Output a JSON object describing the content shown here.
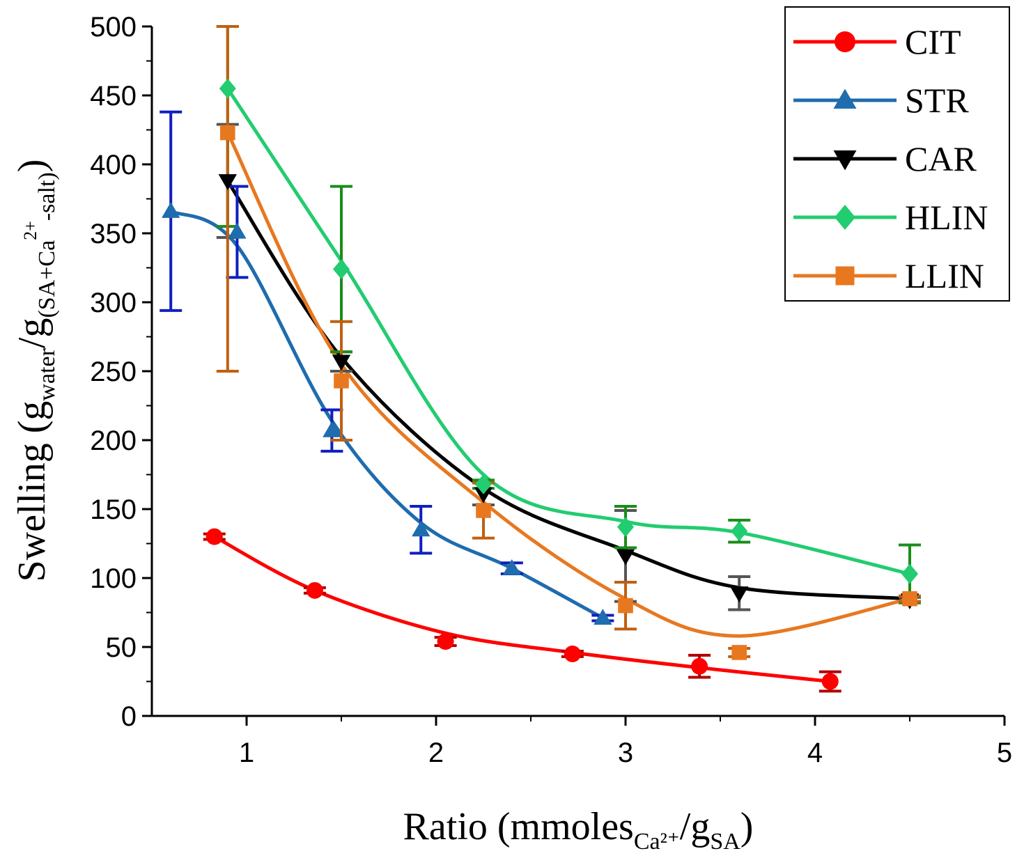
{
  "chart_data": {
    "type": "line",
    "title": "",
    "xlabel": {
      "main": "Ratio (mmoles",
      "sub1": "Ca²⁺",
      "mid": "/g",
      "sub2": "SA",
      "end": ")"
    },
    "ylabel": {
      "main": "Swelling (g",
      "sub1": "water",
      "mid": "/g",
      "sub2": "(SA+Ca",
      "sup": "2+",
      "sub3": "-salt)",
      "end": ")"
    },
    "xlim": [
      0.5,
      5
    ],
    "ylim": [
      0,
      500
    ],
    "xticks": [
      1,
      2,
      3,
      4,
      5
    ],
    "yticks": [
      0,
      50,
      100,
      150,
      200,
      250,
      300,
      350,
      400,
      450,
      500
    ],
    "legend_position": "top-right",
    "series": [
      {
        "name": "CIT",
        "color": "#ff0000",
        "marker": "circle",
        "errorbar_color": "#b00000",
        "points": [
          {
            "x": 0.83,
            "y": 130,
            "err": 2
          },
          {
            "x": 1.36,
            "y": 91,
            "err": 2
          },
          {
            "x": 2.05,
            "y": 54,
            "err": 3
          },
          {
            "x": 2.72,
            "y": 45,
            "err": 2
          },
          {
            "x": 3.39,
            "y": 36,
            "err": 8
          },
          {
            "x": 4.08,
            "y": 25,
            "err": 7
          }
        ],
        "curve": [
          [
            0.83,
            130
          ],
          [
            1.36,
            91
          ],
          [
            2.05,
            60
          ],
          [
            2.72,
            46
          ],
          [
            3.39,
            35
          ],
          [
            4.08,
            25
          ]
        ]
      },
      {
        "name": "STR",
        "color": "#1f6cae",
        "marker": "triangle-up",
        "errorbar_color": "#0f1fc0",
        "points": [
          {
            "x": 0.6,
            "y": 366,
            "err": 72
          },
          {
            "x": 0.95,
            "y": 351,
            "err": 33
          },
          {
            "x": 1.45,
            "y": 207,
            "err": 15
          },
          {
            "x": 1.92,
            "y": 135,
            "err": 17
          },
          {
            "x": 2.4,
            "y": 107,
            "err": 4
          },
          {
            "x": 2.88,
            "y": 71,
            "err": 2
          }
        ],
        "curve": [
          [
            0.6,
            366
          ],
          [
            0.95,
            341
          ],
          [
            1.45,
            214
          ],
          [
            1.92,
            140
          ],
          [
            2.4,
            107
          ],
          [
            2.88,
            71
          ]
        ]
      },
      {
        "name": "CAR",
        "color": "#000000",
        "marker": "triangle-down",
        "errorbar_color": "#555555",
        "points": [
          {
            "x": 0.9,
            "y": 388,
            "err": 41
          },
          {
            "x": 1.5,
            "y": 257,
            "err": 7
          },
          {
            "x": 2.25,
            "y": 161,
            "err": 8
          },
          {
            "x": 3.0,
            "y": 116,
            "err": 33
          },
          {
            "x": 3.6,
            "y": 89,
            "err": 12
          },
          {
            "x": 4.5,
            "y": 84,
            "err": 2
          }
        ],
        "curve": [
          [
            0.9,
            388
          ],
          [
            1.5,
            260
          ],
          [
            2.25,
            165
          ],
          [
            3.0,
            120
          ],
          [
            3.6,
            93
          ],
          [
            4.5,
            85
          ]
        ]
      },
      {
        "name": "HLIN",
        "color": "#22cc70",
        "marker": "diamond",
        "errorbar_color": "#1a8c1a",
        "points": [
          {
            "x": 0.9,
            "y": 455,
            "err": 100
          },
          {
            "x": 1.5,
            "y": 324,
            "err": 60
          },
          {
            "x": 2.25,
            "y": 168,
            "err": 3
          },
          {
            "x": 3.0,
            "y": 137,
            "err": 15
          },
          {
            "x": 3.6,
            "y": 134,
            "err": 8
          },
          {
            "x": 4.5,
            "y": 103,
            "err": 21
          }
        ],
        "curve": [
          [
            0.9,
            455
          ],
          [
            1.5,
            330
          ],
          [
            2.25,
            175
          ],
          [
            3.0,
            141
          ],
          [
            3.6,
            133
          ],
          [
            4.5,
            103
          ]
        ]
      },
      {
        "name": "LLIN",
        "color": "#e87820",
        "marker": "square",
        "errorbar_color": "#c06010",
        "points": [
          {
            "x": 0.9,
            "y": 423,
            "err": 173
          },
          {
            "x": 1.5,
            "y": 243,
            "err": 43
          },
          {
            "x": 2.25,
            "y": 149,
            "err": 20
          },
          {
            "x": 3.0,
            "y": 80,
            "err": 17
          },
          {
            "x": 3.6,
            "y": 46,
            "err": 3
          },
          {
            "x": 4.5,
            "y": 85,
            "err": 2
          }
        ],
        "curve": [
          [
            0.9,
            423
          ],
          [
            1.5,
            255
          ],
          [
            2.25,
            155
          ],
          [
            3.0,
            85
          ],
          [
            3.6,
            58
          ],
          [
            4.5,
            85
          ]
        ]
      }
    ]
  }
}
